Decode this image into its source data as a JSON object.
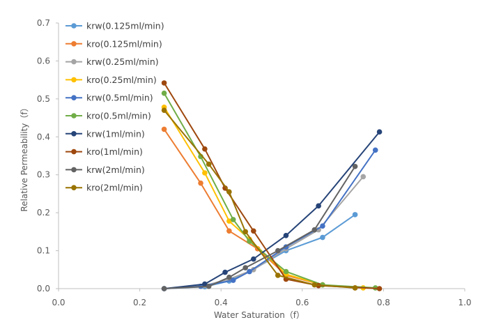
{
  "chart_data": {
    "type": "scatter",
    "xlabel": "Water Saturation（f）",
    "ylabel": "Relative Permeability（f）",
    "xlim": [
      0,
      1.0
    ],
    "ylim": [
      0,
      0.7
    ],
    "x_ticks": [
      "0.0",
      "0.2",
      "0.4",
      "0.6",
      "0.8",
      "1.0"
    ],
    "y_ticks": [
      "0.0",
      "0.1",
      "0.2",
      "0.3",
      "0.4",
      "0.5",
      "0.6",
      "0.7"
    ],
    "grid": false,
    "legend_position": "top-left",
    "series": [
      {
        "name": "krw(0.125ml/min)",
        "color": "#5B9BD5",
        "x": [
          0.26,
          0.36,
          0.42,
          0.47,
          0.56,
          0.65,
          0.73
        ],
        "y": [
          0.0,
          0.005,
          0.02,
          0.045,
          0.1,
          0.135,
          0.195
        ]
      },
      {
        "name": "kro(0.125ml/min)",
        "color": "#ED7D31",
        "x": [
          0.26,
          0.35,
          0.42,
          0.49,
          0.56,
          0.65,
          0.73
        ],
        "y": [
          0.42,
          0.278,
          0.152,
          0.105,
          0.035,
          0.01,
          0.002
        ]
      },
      {
        "name": "krw(0.25ml/min)",
        "color": "#A5A5A5",
        "x": [
          0.26,
          0.36,
          0.42,
          0.48,
          0.56,
          0.64,
          0.75
        ],
        "y": [
          0.0,
          0.008,
          0.025,
          0.05,
          0.105,
          0.155,
          0.295
        ]
      },
      {
        "name": "kro(0.25ml/min)",
        "color": "#FFC000",
        "x": [
          0.26,
          0.36,
          0.42,
          0.47,
          0.56,
          0.65,
          0.75
        ],
        "y": [
          0.478,
          0.305,
          0.178,
          0.13,
          0.038,
          0.01,
          0.002
        ]
      },
      {
        "name": "krw(0.5ml/min)",
        "color": "#4472C4",
        "x": [
          0.26,
          0.35,
          0.43,
          0.47,
          0.56,
          0.65,
          0.78
        ],
        "y": [
          0.0,
          0.006,
          0.022,
          0.045,
          0.11,
          0.165,
          0.365
        ]
      },
      {
        "name": "kro(0.5ml/min)",
        "color": "#70AD47",
        "x": [
          0.26,
          0.35,
          0.43,
          0.47,
          0.56,
          0.65,
          0.78
        ],
        "y": [
          0.515,
          0.348,
          0.182,
          0.125,
          0.045,
          0.01,
          0.002
        ]
      },
      {
        "name": "krw(1ml/min)",
        "color": "#264478",
        "x": [
          0.26,
          0.36,
          0.41,
          0.48,
          0.56,
          0.64,
          0.79
        ],
        "y": [
          0.0,
          0.012,
          0.043,
          0.078,
          0.14,
          0.218,
          0.413
        ]
      },
      {
        "name": "kro(1ml/min)",
        "color": "#9E480E",
        "x": [
          0.26,
          0.36,
          0.41,
          0.48,
          0.56,
          0.64,
          0.79
        ],
        "y": [
          0.542,
          0.368,
          0.265,
          0.152,
          0.025,
          0.008,
          0.0
        ]
      },
      {
        "name": "krw(2ml/min)",
        "color": "#636363",
        "x": [
          0.26,
          0.37,
          0.42,
          0.46,
          0.54,
          0.63,
          0.73
        ],
        "y": [
          0.0,
          0.006,
          0.03,
          0.055,
          0.1,
          0.155,
          0.322
        ]
      },
      {
        "name": "kro(2ml/min)",
        "color": "#997300",
        "x": [
          0.26,
          0.37,
          0.42,
          0.46,
          0.54,
          0.63,
          0.73
        ],
        "y": [
          0.47,
          0.328,
          0.255,
          0.15,
          0.035,
          0.01,
          0.002
        ]
      }
    ]
  }
}
